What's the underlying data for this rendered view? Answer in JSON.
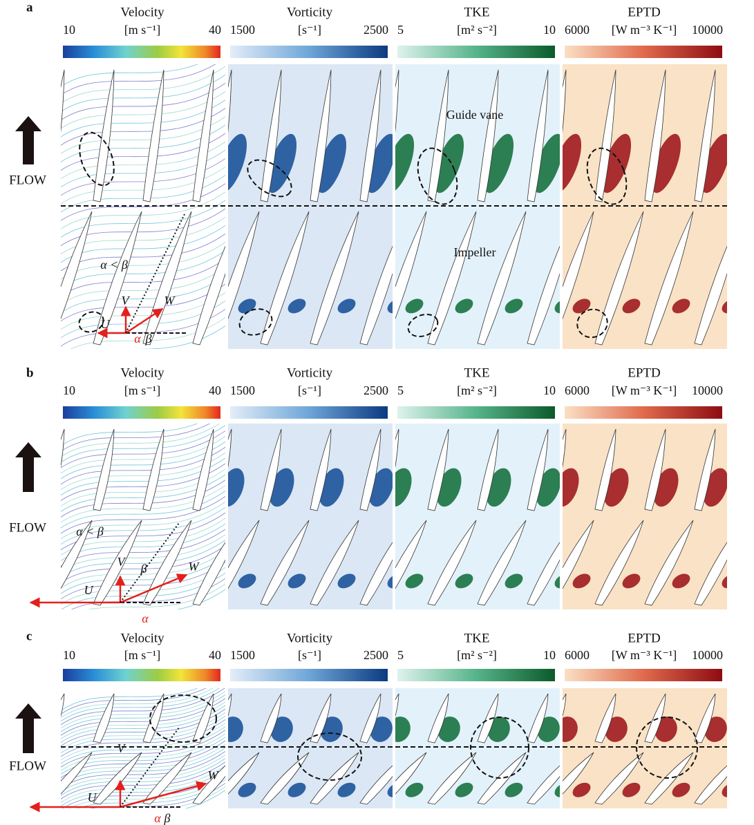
{
  "panels": [
    {
      "label": "a",
      "colorbars": [
        {
          "title": "Velocity",
          "unit": "[m s⁻¹]",
          "min": 10,
          "max": 40
        },
        {
          "title": "Vorticity",
          "unit": "[s⁻¹]",
          "min": 1500,
          "max": 2500
        },
        {
          "title": "TKE",
          "unit": "[m² s⁻²]",
          "min": 5,
          "max": 10
        },
        {
          "title": "EPTD",
          "unit": "[W m⁻³ K⁻¹]",
          "min": 6000,
          "max": 10000
        }
      ],
      "flow": "FLOW",
      "annotations": {
        "guide_vane": "Guide vane",
        "impeller": "Impeller",
        "angle_relation": "α < β",
        "v": "V",
        "w": "W",
        "u": "U",
        "alpha": "α",
        "beta": "β"
      }
    },
    {
      "label": "b",
      "colorbars": [
        {
          "title": "Velocity",
          "unit": "[m s⁻¹]",
          "min": 10,
          "max": 40
        },
        {
          "title": "Vorticity",
          "unit": "[s⁻¹]",
          "min": 1500,
          "max": 2500
        },
        {
          "title": "TKE",
          "unit": "[m² s⁻²]",
          "min": 5,
          "max": 10
        },
        {
          "title": "EPTD",
          "unit": "[W m⁻³ K⁻¹]",
          "min": 6000,
          "max": 10000
        }
      ],
      "flow": "FLOW",
      "annotations": {
        "angle_relation": "α < β",
        "v": "V",
        "w": "W",
        "u": "U",
        "alpha": "α",
        "beta": "β"
      }
    },
    {
      "label": "c",
      "colorbars": [
        {
          "title": "Velocity",
          "unit": "[m s⁻¹]",
          "min": 10,
          "max": 40
        },
        {
          "title": "Vorticity",
          "unit": "[s⁻¹]",
          "min": 1500,
          "max": 2500
        },
        {
          "title": "TKE",
          "unit": "[m² s⁻²]",
          "min": 5,
          "max": 10
        },
        {
          "title": "EPTD",
          "unit": "[W m⁻³ K⁻¹]",
          "min": 6000,
          "max": 10000
        }
      ],
      "flow": "FLOW",
      "annotations": {
        "v": "V",
        "w": "W",
        "u": "U",
        "alpha": "α",
        "beta": "β"
      }
    }
  ]
}
